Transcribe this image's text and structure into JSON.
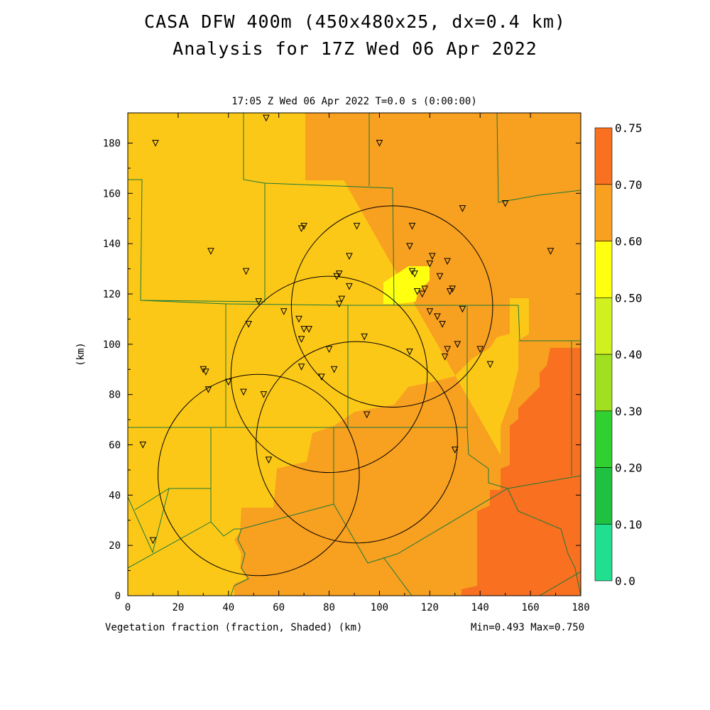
{
  "header": {
    "title_line1": "CASA DFW 400m (450x480x25, dx=0.4 km)",
    "title_line2": "Analysis for 17Z Wed 06 Apr 2022",
    "time_line": "17:05 Z Wed 06 Apr 2022   T=0.0 s (0:00:00)"
  },
  "footer": {
    "field_label": "Vegetation fraction (fraction, Shaded)  (km)",
    "min_max": "Min=0.493 Max=0.750"
  },
  "chart_data": {
    "type": "heatmap",
    "xlabel": "(km)",
    "ylabel": "(km)",
    "xlim": [
      0,
      180
    ],
    "ylim": [
      0,
      192
    ],
    "x_ticks": [
      0,
      20,
      40,
      60,
      80,
      100,
      120,
      140,
      160,
      180
    ],
    "y_ticks": [
      0,
      20,
      40,
      60,
      80,
      100,
      120,
      140,
      160,
      180
    ],
    "colorbar": {
      "levels": [
        "0.0",
        "0.10",
        "0.20",
        "0.30",
        "0.40",
        "0.50",
        "0.60",
        "0.70",
        "0.75"
      ],
      "colors": [
        "#20e090",
        "#20c040",
        "#30d030",
        "#a0e020",
        "#d0f020",
        "#ffff10",
        "#fcc818",
        "#f8a020",
        "#f87020"
      ]
    },
    "regions": [
      {
        "value": 0.55,
        "color": "#fcc818",
        "label": "0.50-0.60"
      },
      {
        "value": 0.65,
        "color": "#f8a020",
        "label": "0.60-0.70"
      },
      {
        "value": 0.72,
        "color": "#f87020",
        "label": "0.70-0.75"
      },
      {
        "value": 0.49,
        "color": "#ffff10",
        "label": "0.40-0.50"
      }
    ],
    "range_rings": [
      {
        "cx": 105,
        "cy": 115,
        "r": 40
      },
      {
        "cx": 80,
        "cy": 88,
        "r": 39
      },
      {
        "cx": 52,
        "cy": 48,
        "r": 40
      },
      {
        "cx": 91,
        "cy": 61,
        "r": 40
      }
    ],
    "stations": [
      [
        11,
        180
      ],
      [
        55,
        190
      ],
      [
        100,
        180
      ],
      [
        33,
        137
      ],
      [
        47,
        129
      ],
      [
        70,
        147
      ],
      [
        69,
        146
      ],
      [
        91,
        147
      ],
      [
        88,
        135
      ],
      [
        113,
        147
      ],
      [
        112,
        139
      ],
      [
        121,
        135
      ],
      [
        127,
        133
      ],
      [
        133,
        154
      ],
      [
        150,
        156
      ],
      [
        168,
        137
      ],
      [
        84,
        128
      ],
      [
        83,
        127
      ],
      [
        88,
        123
      ],
      [
        85,
        118
      ],
      [
        84,
        116
      ],
      [
        113,
        129
      ],
      [
        114,
        128
      ],
      [
        118,
        122
      ],
      [
        115,
        121
      ],
      [
        117,
        120
      ],
      [
        124,
        127
      ],
      [
        128,
        121
      ],
      [
        129,
        122
      ],
      [
        120,
        132
      ],
      [
        133,
        114
      ],
      [
        52,
        117
      ],
      [
        62,
        113
      ],
      [
        68,
        110
      ],
      [
        70,
        106
      ],
      [
        72,
        106
      ],
      [
        69,
        102
      ],
      [
        48,
        108
      ],
      [
        94,
        103
      ],
      [
        80,
        98
      ],
      [
        112,
        97
      ],
      [
        127,
        98
      ],
      [
        126,
        95
      ],
      [
        131,
        100
      ],
      [
        140,
        98
      ],
      [
        144,
        92
      ],
      [
        30,
        90
      ],
      [
        31,
        89
      ],
      [
        32,
        82
      ],
      [
        40,
        85
      ],
      [
        46,
        81
      ],
      [
        54,
        80
      ],
      [
        69,
        91
      ],
      [
        77,
        87
      ],
      [
        82,
        90
      ],
      [
        95,
        72
      ],
      [
        56,
        54
      ],
      [
        130,
        58
      ],
      [
        6,
        60
      ],
      [
        10,
        22
      ],
      [
        120,
        113
      ],
      [
        123,
        111
      ],
      [
        125,
        108
      ]
    ]
  }
}
